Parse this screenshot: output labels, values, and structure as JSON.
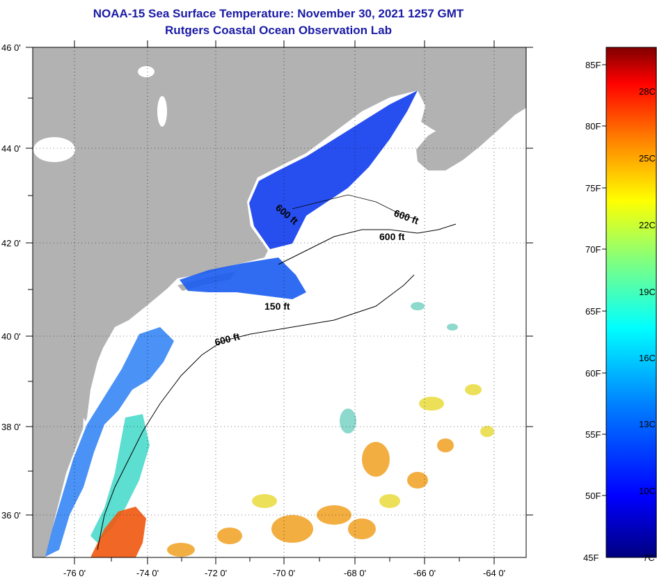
{
  "title": {
    "line1": "NOAA-15 Sea Surface Temperature:  November 30, 2021 1257 GMT",
    "line2": "Rutgers Coastal Ocean Observation Lab"
  },
  "lat_labels": [
    "46 0'",
    "44 0'",
    "42 0'",
    "40 0'",
    "38 0'",
    "36 0'"
  ],
  "lon_labels": [
    "-76 0'",
    "-74 0'",
    "-72 0'",
    "-70 0'",
    "-68 0'",
    "-66 0'",
    "-64 0'"
  ],
  "contour_labels": [
    "600 ft",
    "600 ft",
    "600 ft",
    "150 ft",
    "600 ft"
  ],
  "colorbar": {
    "fahrenheit": [
      "85F",
      "80F",
      "75F",
      "70F",
      "65F",
      "60F",
      "55F",
      "50F",
      "45F"
    ],
    "celsius": [
      "28C",
      "25C",
      "22C",
      "19C",
      "16C",
      "13C",
      "10C",
      "7C"
    ]
  },
  "colors": {
    "title": "#1a1aa6",
    "land": "#b2b2b2",
    "ocean": "#ffffff"
  }
}
